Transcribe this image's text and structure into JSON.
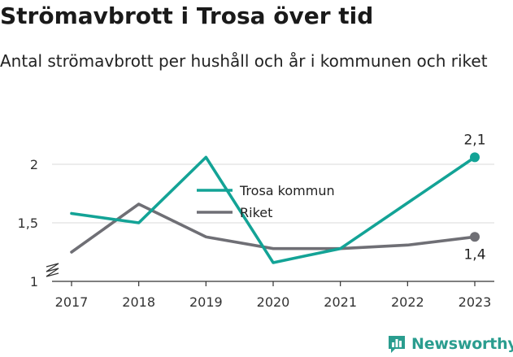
{
  "title": "Strömavbrott i Trosa över tid",
  "subtitle": "Antal strömavbrott per hushåll och år i kommunen och riket",
  "brand": {
    "name": "Newsworthy",
    "icon": "bar-chart-logo-icon",
    "color": "#2a9d8f"
  },
  "chart_data": {
    "type": "line",
    "title": "Strömavbrott i Trosa över tid",
    "subtitle": "Antal strömavbrott per hushåll och år i kommunen och riket",
    "xlabel": "",
    "ylabel": "",
    "x": [
      "2017",
      "2018",
      "2019",
      "2020",
      "2021",
      "2022",
      "2023"
    ],
    "ylim": [
      1,
      2.2
    ],
    "yticks": [
      1,
      1.5,
      2
    ],
    "ytick_labels": [
      "1",
      "1,5",
      "2"
    ],
    "y_axis_break": true,
    "grid": true,
    "legend_position": "center",
    "series": [
      {
        "name": "Trosa kommun",
        "color": "#13a396",
        "values": [
          1.58,
          1.5,
          2.06,
          1.16,
          1.28,
          1.67,
          2.06
        ],
        "end_label": "2,1"
      },
      {
        "name": "Riket",
        "color": "#6f6f75",
        "values": [
          1.25,
          1.66,
          1.38,
          1.28,
          1.28,
          1.31,
          1.38
        ],
        "end_label": "1,4"
      }
    ]
  }
}
